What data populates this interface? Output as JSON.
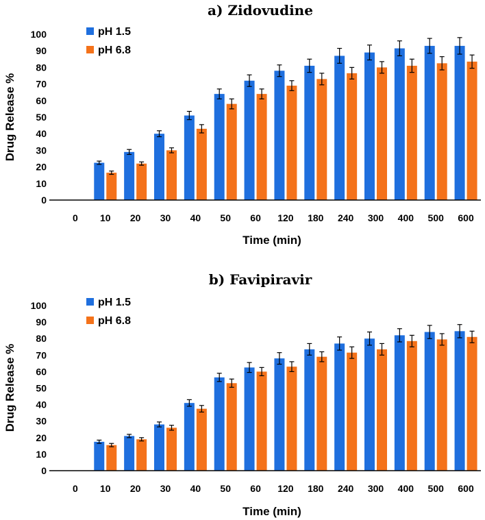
{
  "colors": {
    "ph15": "#1f6fde",
    "ph68": "#f4721a",
    "axis": "#000000"
  },
  "chart_data": [
    {
      "type": "bar",
      "title": "a) Zidovudine",
      "xlabel": "Time (min)",
      "ylabel": "Drug Release %",
      "ylim": [
        0,
        100
      ],
      "yticks": [
        "0",
        "10",
        "20",
        "30",
        "40",
        "50",
        "60",
        "70",
        "80",
        "90",
        "100"
      ],
      "categories": [
        "0",
        "10",
        "20",
        "30",
        "40",
        "50",
        "60",
        "120",
        "180",
        "240",
        "300",
        "400",
        "500",
        "600"
      ],
      "legend_position": "top-left",
      "series": [
        {
          "name": "pH 1.5",
          "values": [
            0,
            22.5,
            29,
            40,
            51,
            64,
            72,
            78,
            81,
            87,
            89,
            91.5,
            93,
            93
          ],
          "errors": [
            0,
            1,
            1.5,
            1.8,
            2.5,
            3,
            3.5,
            3.5,
            4,
            4.5,
            4.5,
            4.5,
            4.5,
            5
          ]
        },
        {
          "name": "pH 6.8",
          "values": [
            0,
            16.5,
            22,
            30,
            43,
            58,
            64,
            69,
            73,
            76.5,
            80,
            81,
            82.5,
            83.5
          ],
          "errors": [
            0,
            1,
            1,
            1.5,
            2.5,
            3,
            3,
            3,
            3.5,
            3.5,
            3.5,
            4,
            4,
            4
          ]
        }
      ]
    },
    {
      "type": "bar",
      "title": "b) Favipiravir",
      "xlabel": "Time (min)",
      "ylabel": "Drug Release %",
      "ylim": [
        0,
        100
      ],
      "yticks": [
        "0",
        "10",
        "20",
        "30",
        "40",
        "50",
        "60",
        "70",
        "80",
        "90",
        "100"
      ],
      "categories": [
        "0",
        "10",
        "20",
        "30",
        "40",
        "50",
        "60",
        "120",
        "180",
        "240",
        "300",
        "400",
        "500",
        "600"
      ],
      "legend_position": "top-left",
      "series": [
        {
          "name": "pH 1.5",
          "values": [
            0,
            17.5,
            21,
            28,
            41,
            56.5,
            62.5,
            68,
            73.5,
            77,
            80,
            82,
            84,
            84.5
          ],
          "errors": [
            0,
            1,
            1,
            1.5,
            2,
            2.5,
            3,
            3.5,
            3.5,
            4,
            4,
            4,
            4,
            4
          ]
        },
        {
          "name": "pH 6.8",
          "values": [
            0,
            15.5,
            19,
            26,
            37.5,
            53,
            60,
            63,
            69,
            71.5,
            73.5,
            78.5,
            79.5,
            81
          ],
          "errors": [
            0,
            1,
            1,
            1.5,
            2,
            2.5,
            2.5,
            3,
            3,
            3.5,
            3.5,
            3.5,
            3.5,
            3.5
          ]
        }
      ]
    }
  ]
}
